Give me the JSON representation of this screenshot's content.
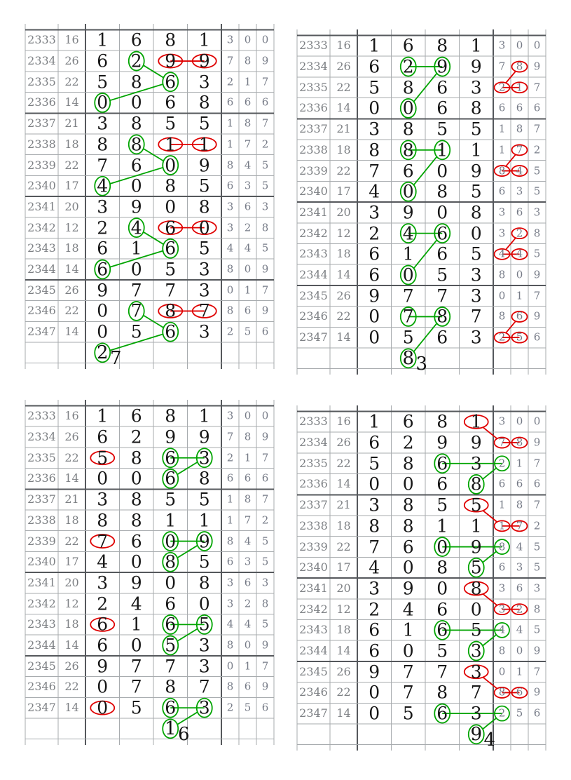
{
  "colors": {
    "green": "#00A400",
    "red": "#DF0000",
    "grid_light": "#A7ABAE",
    "grid_dark": "#55585C",
    "digit_black": "#171717",
    "digit_gray": "#7D8084"
  },
  "chart_data": {
    "type": "table",
    "title": "",
    "rows": [
      {
        "period": "2333",
        "sum": "16",
        "big": [
          "1",
          "6",
          "8",
          "1"
        ],
        "small": [
          "3",
          "0",
          "0"
        ]
      },
      {
        "period": "2334",
        "sum": "26",
        "big": [
          "6",
          "2",
          "9",
          "9"
        ],
        "small": [
          "7",
          "8",
          "9"
        ]
      },
      {
        "period": "2335",
        "sum": "22",
        "big": [
          "5",
          "8",
          "6",
          "3"
        ],
        "small": [
          "2",
          "1",
          "7"
        ]
      },
      {
        "period": "2336",
        "sum": "14",
        "big": [
          "0",
          "0",
          "6",
          "8"
        ],
        "small": [
          "6",
          "6",
          "6"
        ]
      },
      {
        "period": "2337",
        "sum": "21",
        "big": [
          "3",
          "8",
          "5",
          "5"
        ],
        "small": [
          "1",
          "8",
          "7"
        ]
      },
      {
        "period": "2338",
        "sum": "18",
        "big": [
          "8",
          "8",
          "1",
          "1"
        ],
        "small": [
          "1",
          "7",
          "2"
        ]
      },
      {
        "period": "2339",
        "sum": "22",
        "big": [
          "7",
          "6",
          "0",
          "9"
        ],
        "small": [
          "8",
          "4",
          "5"
        ]
      },
      {
        "period": "2340",
        "sum": "17",
        "big": [
          "4",
          "0",
          "8",
          "5"
        ],
        "small": [
          "6",
          "3",
          "5"
        ]
      },
      {
        "period": "2341",
        "sum": "20",
        "big": [
          "3",
          "9",
          "0",
          "8"
        ],
        "small": [
          "3",
          "6",
          "3"
        ]
      },
      {
        "period": "2342",
        "sum": "12",
        "big": [
          "2",
          "4",
          "6",
          "0"
        ],
        "small": [
          "3",
          "2",
          "8"
        ]
      },
      {
        "period": "2343",
        "sum": "18",
        "big": [
          "6",
          "1",
          "6",
          "5"
        ],
        "small": [
          "4",
          "4",
          "5"
        ]
      },
      {
        "period": "2344",
        "sum": "14",
        "big": [
          "6",
          "0",
          "5",
          "3"
        ],
        "small": [
          "8",
          "0",
          "9"
        ]
      },
      {
        "period": "2345",
        "sum": "26",
        "big": [
          "9",
          "7",
          "7",
          "3"
        ],
        "small": [
          "0",
          "1",
          "7"
        ]
      },
      {
        "period": "2346",
        "sum": "22",
        "big": [
          "0",
          "7",
          "8",
          "7"
        ],
        "small": [
          "8",
          "6",
          "9"
        ]
      },
      {
        "period": "2347",
        "sum": "14",
        "big": [
          "0",
          "5",
          "6",
          "3"
        ],
        "small": [
          "2",
          "5",
          "6"
        ]
      }
    ],
    "predictions": [
      "27",
      "83",
      "16",
      "94"
    ]
  },
  "tables": [
    {
      "name": "top-left",
      "footer": {
        "digit": "2",
        "trail": "7",
        "anchor_col": "b0"
      },
      "ellipses": [
        [
          1,
          "b1",
          "green"
        ],
        [
          1,
          "b2",
          "red"
        ],
        [
          1,
          "b3",
          "red"
        ],
        [
          2,
          "b2",
          "green"
        ],
        [
          3,
          "b0",
          "green"
        ],
        [
          5,
          "b1",
          "green"
        ],
        [
          5,
          "b2",
          "red"
        ],
        [
          5,
          "b3",
          "red"
        ],
        [
          6,
          "b2",
          "green"
        ],
        [
          7,
          "b0",
          "green"
        ],
        [
          9,
          "b1",
          "green"
        ],
        [
          9,
          "b2",
          "red"
        ],
        [
          9,
          "b3",
          "red"
        ],
        [
          10,
          "b2",
          "green"
        ],
        [
          11,
          "b0",
          "green"
        ],
        [
          13,
          "b1",
          "green"
        ],
        [
          13,
          "b2",
          "red"
        ],
        [
          13,
          "b3",
          "red"
        ],
        [
          14,
          "b2",
          "green"
        ],
        [
          15,
          "b0",
          "green"
        ]
      ],
      "lines": [
        [
          1,
          "b2",
          1,
          "b3",
          "red"
        ],
        [
          5,
          "b2",
          5,
          "b3",
          "red"
        ],
        [
          9,
          "b2",
          9,
          "b3",
          "red"
        ],
        [
          13,
          "b2",
          13,
          "b3",
          "red"
        ],
        [
          1,
          "b1",
          2,
          "b2",
          "green"
        ],
        [
          2,
          "b2",
          3,
          "b0",
          "green"
        ],
        [
          5,
          "b1",
          6,
          "b2",
          "green"
        ],
        [
          6,
          "b2",
          7,
          "b0",
          "green"
        ],
        [
          9,
          "b1",
          10,
          "b2",
          "green"
        ],
        [
          10,
          "b2",
          11,
          "b0",
          "green"
        ],
        [
          13,
          "b1",
          14,
          "b2",
          "green"
        ],
        [
          14,
          "b2",
          15,
          "b0",
          "green"
        ]
      ]
    },
    {
      "name": "top-right",
      "footer": {
        "digit": "8",
        "trail": "3",
        "anchor_col": "b1"
      },
      "ellipses": [
        [
          1,
          "b1",
          "green"
        ],
        [
          1,
          "b2",
          "green"
        ],
        [
          1,
          "m1",
          "red"
        ],
        [
          2,
          "m0",
          "red"
        ],
        [
          2,
          "m1",
          "red"
        ],
        [
          3,
          "b1",
          "green"
        ],
        [
          5,
          "b1",
          "green"
        ],
        [
          5,
          "b2",
          "green"
        ],
        [
          5,
          "m1",
          "red"
        ],
        [
          6,
          "m0",
          "red"
        ],
        [
          6,
          "m1",
          "red"
        ],
        [
          7,
          "b1",
          "green"
        ],
        [
          9,
          "b1",
          "green"
        ],
        [
          9,
          "b2",
          "green"
        ],
        [
          9,
          "m1",
          "red"
        ],
        [
          10,
          "m0",
          "red"
        ],
        [
          10,
          "m1",
          "red"
        ],
        [
          11,
          "b1",
          "green"
        ],
        [
          13,
          "b1",
          "green"
        ],
        [
          13,
          "b2",
          "green"
        ],
        [
          13,
          "m1",
          "red"
        ],
        [
          14,
          "m0",
          "red"
        ],
        [
          14,
          "m1",
          "red"
        ],
        [
          15,
          "b1",
          "green"
        ]
      ],
      "lines": [
        [
          1,
          "b1",
          1,
          "b2",
          "green"
        ],
        [
          1,
          "b2",
          3,
          "b1",
          "green"
        ],
        [
          1,
          "m1",
          2,
          "m0",
          "red"
        ],
        [
          2,
          "m0",
          2,
          "m1",
          "red"
        ],
        [
          5,
          "b1",
          5,
          "b2",
          "green"
        ],
        [
          5,
          "b2",
          7,
          "b1",
          "green"
        ],
        [
          5,
          "m1",
          6,
          "m0",
          "red"
        ],
        [
          6,
          "m0",
          6,
          "m1",
          "red"
        ],
        [
          9,
          "b1",
          9,
          "b2",
          "green"
        ],
        [
          9,
          "b2",
          11,
          "b1",
          "green"
        ],
        [
          9,
          "m1",
          10,
          "m0",
          "red"
        ],
        [
          10,
          "m0",
          10,
          "m1",
          "red"
        ],
        [
          13,
          "b1",
          13,
          "b2",
          "green"
        ],
        [
          13,
          "b2",
          15,
          "b1",
          "green"
        ],
        [
          13,
          "m1",
          14,
          "m0",
          "red"
        ],
        [
          14,
          "m0",
          14,
          "m1",
          "red"
        ]
      ]
    },
    {
      "name": "bottom-left",
      "footer": {
        "digit": "1",
        "trail": "6",
        "anchor_col": "b2"
      },
      "ellipses": [
        [
          2,
          "b0",
          "red"
        ],
        [
          2,
          "b2",
          "green"
        ],
        [
          2,
          "b3",
          "green"
        ],
        [
          3,
          "b2",
          "green"
        ],
        [
          6,
          "b0",
          "red"
        ],
        [
          6,
          "b2",
          "green"
        ],
        [
          6,
          "b3",
          "green"
        ],
        [
          7,
          "b2",
          "green"
        ],
        [
          10,
          "b0",
          "red"
        ],
        [
          10,
          "b2",
          "green"
        ],
        [
          10,
          "b3",
          "green"
        ],
        [
          11,
          "b2",
          "green"
        ],
        [
          14,
          "b0",
          "red"
        ],
        [
          14,
          "b2",
          "green"
        ],
        [
          14,
          "b3",
          "green"
        ],
        [
          15,
          "b2",
          "green"
        ]
      ],
      "lines": [
        [
          2,
          "b2",
          2,
          "b3",
          "green"
        ],
        [
          2,
          "b3",
          3,
          "b2",
          "green"
        ],
        [
          6,
          "b2",
          6,
          "b3",
          "green"
        ],
        [
          6,
          "b3",
          7,
          "b2",
          "green"
        ],
        [
          10,
          "b2",
          10,
          "b3",
          "green"
        ],
        [
          10,
          "b3",
          11,
          "b2",
          "green"
        ],
        [
          14,
          "b2",
          14,
          "b3",
          "green"
        ],
        [
          14,
          "b3",
          15,
          "b2",
          "green"
        ]
      ]
    },
    {
      "name": "bottom-right",
      "footer": {
        "digit": "9",
        "trail": "4",
        "anchor_col": "b3"
      },
      "ellipses": [
        [
          0,
          "b3",
          "red"
        ],
        [
          1,
          "m0",
          "red"
        ],
        [
          1,
          "m1",
          "red"
        ],
        [
          2,
          "b2",
          "green"
        ],
        [
          2,
          "m0",
          "green"
        ],
        [
          3,
          "b3",
          "green"
        ],
        [
          4,
          "b3",
          "red"
        ],
        [
          5,
          "m0",
          "red"
        ],
        [
          5,
          "m1",
          "red"
        ],
        [
          6,
          "b2",
          "green"
        ],
        [
          6,
          "m0",
          "green"
        ],
        [
          7,
          "b3",
          "green"
        ],
        [
          8,
          "b3",
          "red"
        ],
        [
          9,
          "m0",
          "red"
        ],
        [
          9,
          "m1",
          "red"
        ],
        [
          10,
          "b2",
          "green"
        ],
        [
          10,
          "m0",
          "green"
        ],
        [
          11,
          "b3",
          "green"
        ],
        [
          12,
          "b3",
          "red"
        ],
        [
          13,
          "m0",
          "red"
        ],
        [
          13,
          "m1",
          "red"
        ],
        [
          14,
          "b2",
          "green"
        ],
        [
          14,
          "m0",
          "green"
        ],
        [
          15,
          "b3",
          "green"
        ]
      ],
      "lines": [
        [
          0,
          "b3",
          1,
          "m0",
          "red"
        ],
        [
          1,
          "m0",
          1,
          "m1",
          "red"
        ],
        [
          2,
          "b2",
          2,
          "m0",
          "green"
        ],
        [
          2,
          "m0",
          3,
          "b3",
          "green"
        ],
        [
          4,
          "b3",
          5,
          "m0",
          "red"
        ],
        [
          5,
          "m0",
          5,
          "m1",
          "red"
        ],
        [
          6,
          "b2",
          6,
          "m0",
          "green"
        ],
        [
          6,
          "m0",
          7,
          "b3",
          "green"
        ],
        [
          8,
          "b3",
          9,
          "m0",
          "red"
        ],
        [
          9,
          "m0",
          9,
          "m1",
          "red"
        ],
        [
          10,
          "b2",
          10,
          "m0",
          "green"
        ],
        [
          10,
          "m0",
          11,
          "b3",
          "green"
        ],
        [
          12,
          "b3",
          13,
          "m0",
          "red"
        ],
        [
          13,
          "m0",
          13,
          "m1",
          "red"
        ],
        [
          14,
          "b2",
          14,
          "m0",
          "green"
        ],
        [
          14,
          "m0",
          15,
          "b3",
          "green"
        ]
      ]
    }
  ]
}
